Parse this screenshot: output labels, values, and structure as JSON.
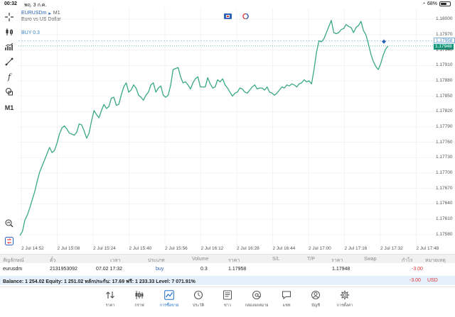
{
  "status_bar": {
    "time": "00:32",
    "date": "พฤ. 3 ก.ค.",
    "battery": "68%",
    "battery_level": 0.68
  },
  "chart": {
    "symbol": "EURUSDm",
    "symbol_arrow": "▸",
    "timeframe": "M1",
    "description": "Euro vs US Dollar",
    "buy_label": "BUY 0.3",
    "ask_price": "1.17958",
    "bid_price": "1.17948"
  },
  "toolbar": {
    "timeframe_label": "M1"
  },
  "chart_data": {
    "type": "line",
    "x_labels": [
      "2 Jul 14:52",
      "2 Jul 15:08",
      "2 Jul 15:24",
      "2 Jul 15:40",
      "2 Jul 15:56",
      "2 Jul 16:12",
      "2 Jul 16:28",
      "2 Jul 16:44",
      "2 Jul 17:00",
      "2 Jul 17:16",
      "2 Jul 17:32",
      "2 Jul 17:48"
    ],
    "y_labels": [
      "1.18000",
      "1.17970",
      "1.17940",
      "1.17910",
      "1.17880",
      "1.17850",
      "1.17820",
      "1.17790",
      "1.17760",
      "1.17730",
      "1.17700",
      "1.17670",
      "1.17640",
      "1.17610",
      "1.17580"
    ],
    "ylim": [
      1.1757,
      1.1801
    ],
    "grid": true,
    "line_color": "#3aa882",
    "ask_line_color": "#7fb3dc",
    "bid_line_color": "#13997b",
    "values": [
      1.17578,
      1.17586,
      1.17608,
      1.17618,
      1.17632,
      1.17648,
      1.17664,
      1.17684,
      1.17702,
      1.17714,
      1.17726,
      1.17738,
      1.1775,
      1.1774,
      1.17744,
      1.17758,
      1.17776,
      1.17788,
      1.17792,
      1.17786,
      1.17778,
      1.17776,
      1.17774,
      1.1778,
      1.17796,
      1.17794,
      1.17782,
      1.17768,
      1.17778,
      1.17802,
      1.17822,
      1.17814,
      1.17808,
      1.17822,
      1.17834,
      1.17826,
      1.1783,
      1.17846,
      1.17848,
      1.17832,
      1.17834,
      1.17852,
      1.17868,
      1.17876,
      1.17858,
      1.17862,
      1.17872,
      1.17866,
      1.17852,
      1.17848,
      1.17842,
      1.17852,
      1.17858,
      1.17872,
      1.17876,
      1.17858,
      1.17866,
      1.1787,
      1.17852,
      1.17848,
      1.17852,
      1.17872,
      1.17902,
      1.17904,
      1.17906,
      1.17888,
      1.17876,
      1.17878,
      1.17872,
      1.17864,
      1.17876,
      1.17884,
      1.17888,
      1.17868,
      1.17868,
      1.17868,
      1.17886,
      1.17874,
      1.17866,
      1.17868,
      1.17882,
      1.17878,
      1.17884,
      1.17872,
      1.17866,
      1.17858,
      1.1785,
      1.17856,
      1.17858,
      1.17866,
      1.17864,
      1.17858,
      1.17856,
      1.17862,
      1.17868,
      1.17872,
      1.17864,
      1.17866,
      1.17866,
      1.17862,
      1.17868,
      1.17858,
      1.17856,
      1.17852,
      1.17856,
      1.17862,
      1.17868,
      1.17866,
      1.17872,
      1.1787,
      1.17874,
      1.17872,
      1.17868,
      1.17874,
      1.17876,
      1.17882,
      1.17878,
      1.1788,
      1.17874,
      1.17902,
      1.17936,
      1.17958,
      1.17956,
      1.17962,
      1.17974,
      1.17986,
      1.17998,
      1.17974,
      1.17972,
      1.17974,
      1.1798,
      1.17982,
      1.1799,
      1.17986,
      1.17984,
      1.17974,
      1.17984,
      1.17988,
      1.17996,
      1.17978,
      1.1797,
      1.17952,
      1.17932,
      1.17918,
      1.17908,
      1.17902,
      1.17914,
      1.1793,
      1.17942,
      1.17948
    ]
  },
  "trade_table": {
    "headers": [
      "สัญลักษณ์",
      "ตั๋ว",
      "เวลา",
      "ประเภท",
      "Volume",
      "ราคา",
      "S/L",
      "T/P",
      "ราคา",
      "Swap",
      "กำไร",
      "หมายเหตุ"
    ],
    "row": {
      "symbol": "eurusdm",
      "ticket": "2131953092",
      "time": "07.02 17:32",
      "type": "buy",
      "volume": "0.3",
      "price_open": "1.17958",
      "price_current": "1.17948",
      "profit": "-3.00"
    },
    "balance_text": "Balance: 1 254.02 Equity: 1 251.02 หลักประกัน: 17.69 ฟรี: 1 233.33 Level: 7 071.91%",
    "total_profit": "-3.00",
    "currency": "USD"
  },
  "tabs": [
    {
      "label": "ราคา",
      "icon": "quotes-icon"
    },
    {
      "label": "กราฟ",
      "icon": "chart-icon"
    },
    {
      "label": "การซื้อขาย",
      "icon": "trade-icon"
    },
    {
      "label": "ประวัติ",
      "icon": "history-icon"
    },
    {
      "label": "ข่าว",
      "icon": "news-icon"
    },
    {
      "label": "กล่องจดหมาย",
      "icon": "mailbox-icon"
    },
    {
      "label": "แชท",
      "icon": "chat-icon"
    },
    {
      "label": "บัญชี",
      "icon": "accounts-icon"
    },
    {
      "label": "การตั้งค่า",
      "icon": "settings-icon"
    }
  ],
  "active_tab": 2
}
